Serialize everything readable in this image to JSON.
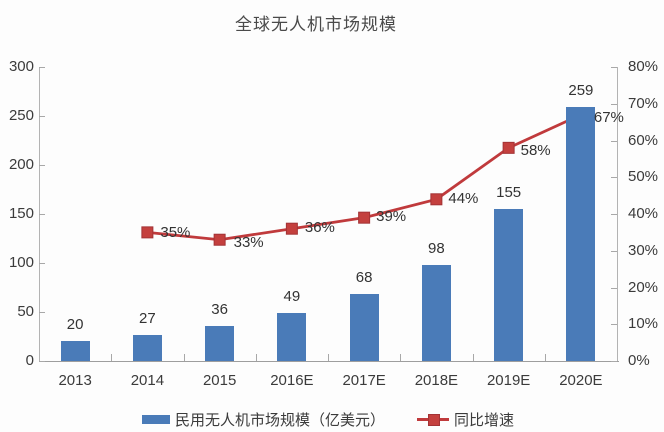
{
  "title": "全球无人机市场规模",
  "chart_data": {
    "type": "bar",
    "subtype": "combo-bar-line",
    "categories": [
      "2013",
      "2014",
      "2015",
      "2016E",
      "2017E",
      "2018E",
      "2019E",
      "2020E"
    ],
    "series": [
      {
        "name": "民用无人机市场规模（亿美元）",
        "type": "bar",
        "axis": "left",
        "values": [
          20,
          27,
          36,
          49,
          68,
          98,
          155,
          259
        ],
        "labels": [
          "20",
          "27",
          "36",
          "49",
          "68",
          "98",
          "155",
          "259"
        ]
      },
      {
        "name": "同比增速",
        "type": "line",
        "axis": "right",
        "values": [
          null,
          35,
          33,
          36,
          39,
          44,
          58,
          67
        ],
        "labels": [
          "",
          "35%",
          "33%",
          "36%",
          "39%",
          "44%",
          "58%",
          "67%"
        ]
      }
    ],
    "left_axis": {
      "min": 0,
      "max": 300,
      "step": 50,
      "tick_labels": [
        "300",
        "250",
        "200",
        "150",
        "100",
        "50",
        "0"
      ]
    },
    "right_axis": {
      "min": 0,
      "max": 80,
      "step": 10,
      "tick_labels": [
        "80%",
        "70%",
        "60%",
        "50%",
        "40%",
        "30%",
        "20%",
        "10%",
        "0%"
      ]
    },
    "legend_position": "bottom",
    "grid": false
  },
  "colors": {
    "bar": "#4a7bb8",
    "line": "#c03a3c",
    "marker": "#c4403e",
    "marker_border": "#a33335",
    "axis": "#b3b3b3",
    "text": "#3b3b3b",
    "title": "#4a4a4a",
    "background": "#fdfdfd"
  }
}
